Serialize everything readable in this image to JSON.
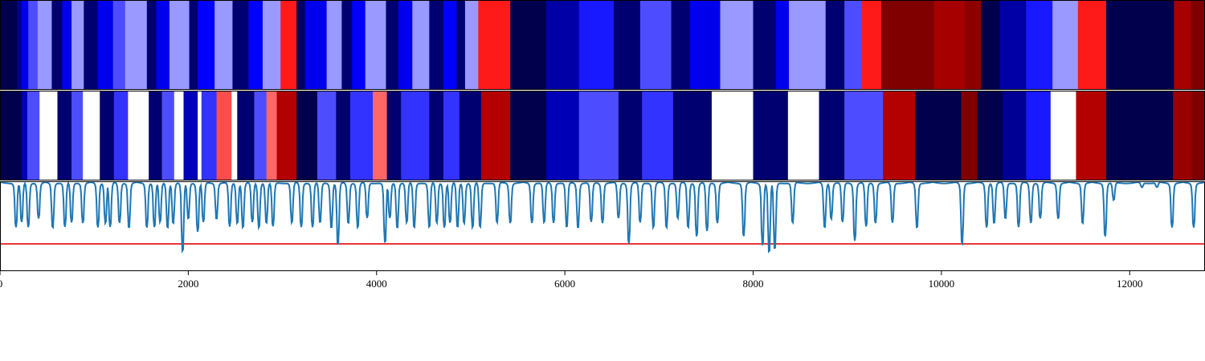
{
  "chart_data": {
    "type": "heatmap",
    "title": "",
    "xlabel": "",
    "ylabel": "",
    "xlim": [
      0,
      12800
    ],
    "x_ticks": [
      "0",
      "2000",
      "4000",
      "6000",
      "8000",
      "10000",
      "12000"
    ],
    "x_tick_values": [
      0,
      2000,
      4000,
      6000,
      8000,
      10000,
      12000
    ],
    "colors": {
      "strip_frame": "#000000",
      "threshold_line": "#e41a1c",
      "signal_line": "#1f77b4"
    },
    "strips": [
      {
        "name": "",
        "colormap": "seismic",
        "segments": [
          {
            "start": 0,
            "end": 180,
            "value": -1.0
          },
          {
            "start": 180,
            "end": 230,
            "value": -0.8
          },
          {
            "start": 230,
            "end": 300,
            "value": -0.55
          },
          {
            "start": 300,
            "end": 400,
            "value": -0.35
          },
          {
            "start": 400,
            "end": 550,
            "value": -0.2
          },
          {
            "start": 550,
            "end": 660,
            "value": -0.9
          },
          {
            "start": 660,
            "end": 760,
            "value": -0.55
          },
          {
            "start": 760,
            "end": 890,
            "value": -0.2
          },
          {
            "start": 890,
            "end": 1040,
            "value": -0.9
          },
          {
            "start": 1040,
            "end": 1200,
            "value": -0.55
          },
          {
            "start": 1200,
            "end": 1330,
            "value": -0.35
          },
          {
            "start": 1330,
            "end": 1560,
            "value": -0.2
          },
          {
            "start": 1560,
            "end": 1660,
            "value": -0.9
          },
          {
            "start": 1660,
            "end": 1800,
            "value": -0.55
          },
          {
            "start": 1800,
            "end": 2010,
            "value": -0.2
          },
          {
            "start": 2010,
            "end": 2100,
            "value": -0.9
          },
          {
            "start": 2100,
            "end": 2280,
            "value": -0.5
          },
          {
            "start": 2280,
            "end": 2470,
            "value": -0.2
          },
          {
            "start": 2470,
            "end": 2640,
            "value": -0.9
          },
          {
            "start": 2640,
            "end": 2790,
            "value": -0.5
          },
          {
            "start": 2790,
            "end": 2980,
            "value": -0.2
          },
          {
            "start": 2980,
            "end": 3150,
            "value": 0.45
          },
          {
            "start": 3150,
            "end": 3240,
            "value": -0.95
          },
          {
            "start": 3240,
            "end": 3470,
            "value": -0.55
          },
          {
            "start": 3470,
            "end": 3630,
            "value": -0.2
          },
          {
            "start": 3630,
            "end": 3740,
            "value": -0.9
          },
          {
            "start": 3740,
            "end": 3880,
            "value": -0.5
          },
          {
            "start": 3880,
            "end": 4100,
            "value": -0.2
          },
          {
            "start": 4100,
            "end": 4230,
            "value": -0.9
          },
          {
            "start": 4230,
            "end": 4380,
            "value": -0.55
          },
          {
            "start": 4380,
            "end": 4560,
            "value": -0.2
          },
          {
            "start": 4560,
            "end": 4710,
            "value": -0.9
          },
          {
            "start": 4710,
            "end": 4850,
            "value": -0.5
          },
          {
            "start": 4850,
            "end": 4940,
            "value": -0.9
          },
          {
            "start": 4940,
            "end": 5080,
            "value": -0.2
          },
          {
            "start": 5080,
            "end": 5420,
            "value": 0.45
          },
          {
            "start": 5420,
            "end": 5800,
            "value": -1.0
          },
          {
            "start": 5800,
            "end": 6150,
            "value": -0.75
          },
          {
            "start": 6150,
            "end": 6520,
            "value": -0.45
          },
          {
            "start": 6520,
            "end": 6800,
            "value": -0.9
          },
          {
            "start": 6800,
            "end": 7130,
            "value": -0.35
          },
          {
            "start": 7130,
            "end": 7330,
            "value": -0.9
          },
          {
            "start": 7330,
            "end": 7650,
            "value": -0.55
          },
          {
            "start": 7650,
            "end": 8000,
            "value": -0.2
          },
          {
            "start": 8000,
            "end": 8240,
            "value": -0.9
          },
          {
            "start": 8240,
            "end": 8380,
            "value": -0.55
          },
          {
            "start": 8380,
            "end": 8770,
            "value": -0.2
          },
          {
            "start": 8770,
            "end": 8970,
            "value": -0.9
          },
          {
            "start": 8970,
            "end": 9150,
            "value": -0.35
          },
          {
            "start": 9150,
            "end": 9360,
            "value": 0.45
          },
          {
            "start": 9360,
            "end": 9920,
            "value": 1.0
          },
          {
            "start": 9920,
            "end": 10250,
            "value": 0.85
          },
          {
            "start": 10250,
            "end": 10420,
            "value": 0.95
          },
          {
            "start": 10420,
            "end": 10620,
            "value": -1.0
          },
          {
            "start": 10620,
            "end": 10900,
            "value": -0.75
          },
          {
            "start": 10900,
            "end": 11180,
            "value": -0.45
          },
          {
            "start": 11180,
            "end": 11450,
            "value": -0.2
          },
          {
            "start": 11450,
            "end": 11750,
            "value": 0.45
          },
          {
            "start": 11750,
            "end": 12470,
            "value": -1.0
          },
          {
            "start": 12470,
            "end": 12650,
            "value": 0.85
          },
          {
            "start": 12650,
            "end": 12800,
            "value": 1.0
          }
        ]
      },
      {
        "name": "",
        "colormap": "seismic",
        "segments": [
          {
            "start": 0,
            "end": 230,
            "value": -1.0
          },
          {
            "start": 230,
            "end": 290,
            "value": -0.7
          },
          {
            "start": 290,
            "end": 420,
            "value": -0.35
          },
          {
            "start": 420,
            "end": 610,
            "value": 0.0
          },
          {
            "start": 610,
            "end": 760,
            "value": -0.9
          },
          {
            "start": 760,
            "end": 880,
            "value": -0.35
          },
          {
            "start": 880,
            "end": 1060,
            "value": 0.0
          },
          {
            "start": 1060,
            "end": 1210,
            "value": -0.9
          },
          {
            "start": 1210,
            "end": 1360,
            "value": -0.4
          },
          {
            "start": 1360,
            "end": 1580,
            "value": 0.0
          },
          {
            "start": 1580,
            "end": 1720,
            "value": -0.9
          },
          {
            "start": 1720,
            "end": 1850,
            "value": -0.35
          },
          {
            "start": 1850,
            "end": 1950,
            "value": 0.0
          },
          {
            "start": 1950,
            "end": 2100,
            "value": -0.7
          },
          {
            "start": 2100,
            "end": 2140,
            "value": 0.0
          },
          {
            "start": 2140,
            "end": 2300,
            "value": -0.4
          },
          {
            "start": 2300,
            "end": 2460,
            "value": 0.35
          },
          {
            "start": 2460,
            "end": 2520,
            "value": 0.0
          },
          {
            "start": 2520,
            "end": 2700,
            "value": -0.9
          },
          {
            "start": 2700,
            "end": 2830,
            "value": -0.35
          },
          {
            "start": 2830,
            "end": 2940,
            "value": 0.3
          },
          {
            "start": 2940,
            "end": 3150,
            "value": 0.8
          },
          {
            "start": 3150,
            "end": 3370,
            "value": -1.0
          },
          {
            "start": 3370,
            "end": 3570,
            "value": -0.35
          },
          {
            "start": 3570,
            "end": 3720,
            "value": -0.9
          },
          {
            "start": 3720,
            "end": 3960,
            "value": -0.4
          },
          {
            "start": 3960,
            "end": 4110,
            "value": 0.3
          },
          {
            "start": 4110,
            "end": 4260,
            "value": -0.9
          },
          {
            "start": 4260,
            "end": 4560,
            "value": -0.4
          },
          {
            "start": 4560,
            "end": 4710,
            "value": -0.9
          },
          {
            "start": 4710,
            "end": 4880,
            "value": -0.4
          },
          {
            "start": 4880,
            "end": 5110,
            "value": -0.9
          },
          {
            "start": 5110,
            "end": 5420,
            "value": 0.8
          },
          {
            "start": 5420,
            "end": 5800,
            "value": -1.0
          },
          {
            "start": 5800,
            "end": 6150,
            "value": -0.7
          },
          {
            "start": 6150,
            "end": 6570,
            "value": -0.35
          },
          {
            "start": 6570,
            "end": 6820,
            "value": -0.9
          },
          {
            "start": 6820,
            "end": 7150,
            "value": -0.4
          },
          {
            "start": 7150,
            "end": 7560,
            "value": -0.9
          },
          {
            "start": 7560,
            "end": 8000,
            "value": 0.0
          },
          {
            "start": 8000,
            "end": 8370,
            "value": -0.9
          },
          {
            "start": 8370,
            "end": 8700,
            "value": 0.0
          },
          {
            "start": 8700,
            "end": 8970,
            "value": -0.9
          },
          {
            "start": 8970,
            "end": 9380,
            "value": -0.35
          },
          {
            "start": 9380,
            "end": 9720,
            "value": 0.8
          },
          {
            "start": 9720,
            "end": 10210,
            "value": -1.0
          },
          {
            "start": 10210,
            "end": 10380,
            "value": 1.0
          },
          {
            "start": 10380,
            "end": 10650,
            "value": -1.0
          },
          {
            "start": 10650,
            "end": 10900,
            "value": -0.8
          },
          {
            "start": 10900,
            "end": 11160,
            "value": -0.45
          },
          {
            "start": 11160,
            "end": 11430,
            "value": 0.0
          },
          {
            "start": 11430,
            "end": 11750,
            "value": 0.8
          },
          {
            "start": 11750,
            "end": 12460,
            "value": -1.0
          },
          {
            "start": 12460,
            "end": 12660,
            "value": 0.9
          },
          {
            "start": 12660,
            "end": 12800,
            "value": 1.0
          }
        ]
      }
    ],
    "line_panel": {
      "type": "line",
      "ylim": [
        0.0,
        1.0
      ],
      "threshold": 0.3,
      "baseline": 1.0,
      "dips": [
        [
          170,
          0.5
        ],
        [
          230,
          0.55
        ],
        [
          300,
          0.5
        ],
        [
          410,
          0.6
        ],
        [
          560,
          0.5
        ],
        [
          690,
          0.5
        ],
        [
          760,
          0.55
        ],
        [
          880,
          0.55
        ],
        [
          1040,
          0.5
        ],
        [
          1120,
          0.55
        ],
        [
          1170,
          0.5
        ],
        [
          1270,
          0.55
        ],
        [
          1370,
          0.5
        ],
        [
          1560,
          0.5
        ],
        [
          1640,
          0.5
        ],
        [
          1700,
          0.55
        ],
        [
          1780,
          0.5
        ],
        [
          1840,
          0.55
        ],
        [
          1940,
          0.22
        ],
        [
          2000,
          0.6
        ],
        [
          2100,
          0.45
        ],
        [
          2160,
          0.55
        ],
        [
          2300,
          0.6
        ],
        [
          2440,
          0.5
        ],
        [
          2520,
          0.55
        ],
        [
          2580,
          0.5
        ],
        [
          2680,
          0.55
        ],
        [
          2750,
          0.5
        ],
        [
          2830,
          0.55
        ],
        [
          2900,
          0.5
        ],
        [
          3100,
          0.55
        ],
        [
          3200,
          0.5
        ],
        [
          3320,
          0.5
        ],
        [
          3400,
          0.55
        ],
        [
          3520,
          0.5
        ],
        [
          3590,
          0.3
        ],
        [
          3700,
          0.55
        ],
        [
          3800,
          0.5
        ],
        [
          3900,
          0.6
        ],
        [
          4090,
          0.32
        ],
        [
          4140,
          0.6
        ],
        [
          4220,
          0.5
        ],
        [
          4320,
          0.55
        ],
        [
          4400,
          0.5
        ],
        [
          4560,
          0.5
        ],
        [
          4640,
          0.55
        ],
        [
          4720,
          0.5
        ],
        [
          4780,
          0.55
        ],
        [
          4860,
          0.5
        ],
        [
          4930,
          0.55
        ],
        [
          5020,
          0.5
        ],
        [
          5100,
          0.5
        ],
        [
          5280,
          0.55
        ],
        [
          5420,
          0.55
        ],
        [
          5650,
          0.55
        ],
        [
          5780,
          0.55
        ],
        [
          5880,
          0.55
        ],
        [
          6020,
          0.5
        ],
        [
          6140,
          0.5
        ],
        [
          6280,
          0.55
        ],
        [
          6400,
          0.55
        ],
        [
          6570,
          0.6
        ],
        [
          6680,
          0.32
        ],
        [
          6800,
          0.55
        ],
        [
          6940,
          0.5
        ],
        [
          7080,
          0.5
        ],
        [
          7200,
          0.6
        ],
        [
          7310,
          0.5
        ],
        [
          7400,
          0.4
        ],
        [
          7510,
          0.45
        ],
        [
          7620,
          0.55
        ],
        [
          7900,
          0.4
        ],
        [
          8100,
          0.3
        ],
        [
          8170,
          0.22
        ],
        [
          8230,
          0.25
        ],
        [
          8420,
          0.55
        ],
        [
          8760,
          0.5
        ],
        [
          8830,
          0.6
        ],
        [
          8950,
          0.55
        ],
        [
          9080,
          0.35
        ],
        [
          9200,
          0.5
        ],
        [
          9300,
          0.55
        ],
        [
          9480,
          0.55
        ],
        [
          9740,
          0.5
        ],
        [
          10220,
          0.32
        ],
        [
          10480,
          0.5
        ],
        [
          10560,
          0.55
        ],
        [
          10680,
          0.6
        ],
        [
          10820,
          0.5
        ],
        [
          10950,
          0.55
        ],
        [
          11050,
          0.6
        ],
        [
          11240,
          0.6
        ],
        [
          11500,
          0.55
        ],
        [
          11740,
          0.4
        ],
        [
          11830,
          0.8
        ],
        [
          12130,
          0.95
        ],
        [
          12290,
          0.95
        ],
        [
          12450,
          0.5
        ],
        [
          12680,
          0.5
        ]
      ]
    }
  }
}
